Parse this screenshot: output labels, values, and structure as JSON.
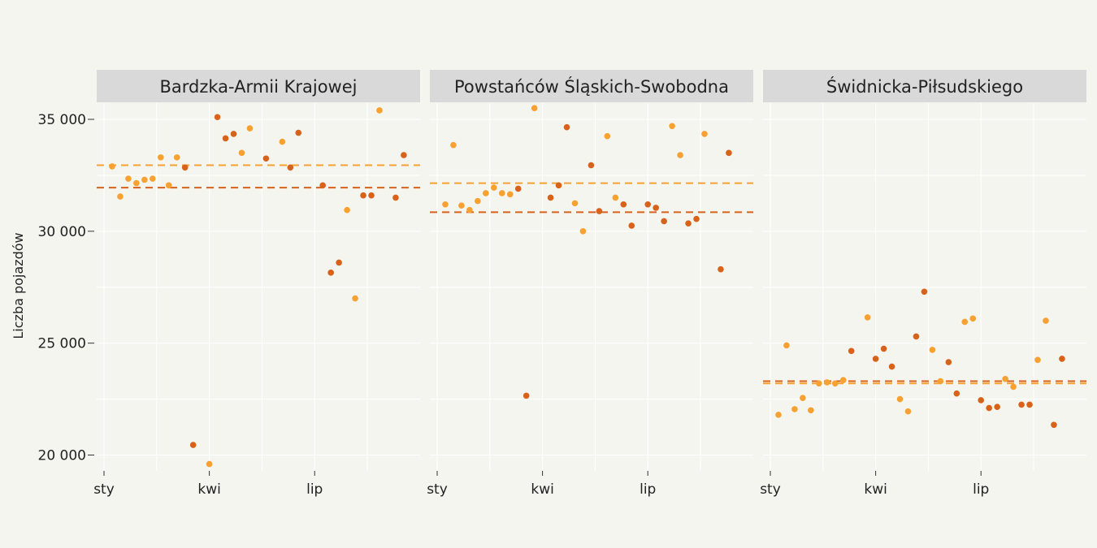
{
  "chart_data": {
    "type": "scatter",
    "ylabel": "Liczba pojazdów",
    "ylim": [
      19300,
      37000
    ],
    "y_ticks": [
      20000,
      25000,
      30000,
      35000
    ],
    "y_tick_labels": [
      "20 000",
      "25 000",
      "30 000",
      "35 000"
    ],
    "x_tick_labels": [
      "sty",
      "kwi",
      "lip"
    ],
    "colors": {
      "light": "#f7a133",
      "dark": "#d9621a",
      "strip": "#d9d9d9",
      "grid": "#ffffff"
    },
    "panels": [
      {
        "label": "Bardzka-Armii Krajowej",
        "mean_light": 32950,
        "mean_dark": 31950,
        "points": [
          {
            "week": 1,
            "y": 32900,
            "s": "light"
          },
          {
            "week": 2,
            "y": 31550,
            "s": "light"
          },
          {
            "week": 3,
            "y": 32350,
            "s": "light"
          },
          {
            "week": 4,
            "y": 32150,
            "s": "light"
          },
          {
            "week": 5,
            "y": 32300,
            "s": "light"
          },
          {
            "week": 6,
            "y": 32350,
            "s": "light"
          },
          {
            "week": 7,
            "y": 33300,
            "s": "light"
          },
          {
            "week": 8,
            "y": 32050,
            "s": "light"
          },
          {
            "week": 9,
            "y": 33300,
            "s": "light"
          },
          {
            "week": 10,
            "y": 32850,
            "s": "dark"
          },
          {
            "week": 11,
            "y": 20450,
            "s": "dark"
          },
          {
            "week": 13,
            "y": 19600,
            "s": "light"
          },
          {
            "week": 14,
            "y": 35100,
            "s": "dark"
          },
          {
            "week": 15,
            "y": 34150,
            "s": "dark"
          },
          {
            "week": 16,
            "y": 34350,
            "s": "dark"
          },
          {
            "week": 17,
            "y": 33500,
            "s": "light"
          },
          {
            "week": 18,
            "y": 34600,
            "s": "light"
          },
          {
            "week": 20,
            "y": 33250,
            "s": "dark"
          },
          {
            "week": 22,
            "y": 34000,
            "s": "light"
          },
          {
            "week": 23,
            "y": 32850,
            "s": "dark"
          },
          {
            "week": 24,
            "y": 34400,
            "s": "dark"
          },
          {
            "week": 27,
            "y": 32050,
            "s": "dark"
          },
          {
            "week": 28,
            "y": 28150,
            "s": "dark"
          },
          {
            "week": 29,
            "y": 28600,
            "s": "dark"
          },
          {
            "week": 30,
            "y": 30950,
            "s": "light"
          },
          {
            "week": 31,
            "y": 27000,
            "s": "light"
          },
          {
            "week": 32,
            "y": 31600,
            "s": "dark"
          },
          {
            "week": 33,
            "y": 31600,
            "s": "dark"
          },
          {
            "week": 34,
            "y": 35400,
            "s": "light"
          },
          {
            "week": 36,
            "y": 31500,
            "s": "dark"
          },
          {
            "week": 37,
            "y": 33400,
            "s": "dark"
          }
        ]
      },
      {
        "label": "Powstańców Śląskich-Swobodna",
        "mean_light": 32150,
        "mean_dark": 30850,
        "points": [
          {
            "week": 1,
            "y": 31200,
            "s": "light"
          },
          {
            "week": 2,
            "y": 33850,
            "s": "light"
          },
          {
            "week": 3,
            "y": 31150,
            "s": "light"
          },
          {
            "week": 4,
            "y": 30950,
            "s": "light"
          },
          {
            "week": 5,
            "y": 31350,
            "s": "light"
          },
          {
            "week": 6,
            "y": 31700,
            "s": "light"
          },
          {
            "week": 7,
            "y": 31950,
            "s": "light"
          },
          {
            "week": 8,
            "y": 31700,
            "s": "light"
          },
          {
            "week": 9,
            "y": 31650,
            "s": "light"
          },
          {
            "week": 10,
            "y": 31900,
            "s": "dark"
          },
          {
            "week": 11,
            "y": 22650,
            "s": "dark"
          },
          {
            "week": 12,
            "y": 35500,
            "s": "light"
          },
          {
            "week": 14,
            "y": 31500,
            "s": "dark"
          },
          {
            "week": 15,
            "y": 32050,
            "s": "dark"
          },
          {
            "week": 16,
            "y": 34650,
            "s": "dark"
          },
          {
            "week": 17,
            "y": 31250,
            "s": "light"
          },
          {
            "week": 18,
            "y": 30000,
            "s": "light"
          },
          {
            "week": 19,
            "y": 32950,
            "s": "dark"
          },
          {
            "week": 20,
            "y": 30900,
            "s": "dark"
          },
          {
            "week": 21,
            "y": 34250,
            "s": "light"
          },
          {
            "week": 22,
            "y": 31500,
            "s": "light"
          },
          {
            "week": 23,
            "y": 31200,
            "s": "dark"
          },
          {
            "week": 24,
            "y": 30250,
            "s": "dark"
          },
          {
            "week": 26,
            "y": 31200,
            "s": "dark"
          },
          {
            "week": 27,
            "y": 31050,
            "s": "dark"
          },
          {
            "week": 28,
            "y": 30450,
            "s": "dark"
          },
          {
            "week": 29,
            "y": 34700,
            "s": "light"
          },
          {
            "week": 30,
            "y": 33400,
            "s": "light"
          },
          {
            "week": 31,
            "y": 30350,
            "s": "dark"
          },
          {
            "week": 32,
            "y": 30550,
            "s": "dark"
          },
          {
            "week": 33,
            "y": 34350,
            "s": "light"
          },
          {
            "week": 35,
            "y": 28300,
            "s": "dark"
          },
          {
            "week": 36,
            "y": 33500,
            "s": "dark"
          }
        ]
      },
      {
        "label": "Świdnicka-Piłsudskiego",
        "mean_light": 23200,
        "mean_dark": 23300,
        "points": [
          {
            "week": 1,
            "y": 21800,
            "s": "light"
          },
          {
            "week": 2,
            "y": 24900,
            "s": "light"
          },
          {
            "week": 3,
            "y": 22050,
            "s": "light"
          },
          {
            "week": 4,
            "y": 22550,
            "s": "light"
          },
          {
            "week": 5,
            "y": 22000,
            "s": "light"
          },
          {
            "week": 6,
            "y": 23200,
            "s": "light"
          },
          {
            "week": 7,
            "y": 23250,
            "s": "light"
          },
          {
            "week": 8,
            "y": 23200,
            "s": "light"
          },
          {
            "week": 9,
            "y": 23350,
            "s": "light"
          },
          {
            "week": 10,
            "y": 24650,
            "s": "dark"
          },
          {
            "week": 12,
            "y": 26150,
            "s": "light"
          },
          {
            "week": 13,
            "y": 24300,
            "s": "dark"
          },
          {
            "week": 14,
            "y": 24750,
            "s": "dark"
          },
          {
            "week": 15,
            "y": 23950,
            "s": "dark"
          },
          {
            "week": 16,
            "y": 22500,
            "s": "light"
          },
          {
            "week": 17,
            "y": 21950,
            "s": "light"
          },
          {
            "week": 18,
            "y": 25300,
            "s": "dark"
          },
          {
            "week": 19,
            "y": 27300,
            "s": "dark"
          },
          {
            "week": 20,
            "y": 24700,
            "s": "light"
          },
          {
            "week": 21,
            "y": 23300,
            "s": "light"
          },
          {
            "week": 22,
            "y": 24150,
            "s": "dark"
          },
          {
            "week": 23,
            "y": 22750,
            "s": "dark"
          },
          {
            "week": 24,
            "y": 25950,
            "s": "light"
          },
          {
            "week": 25,
            "y": 26100,
            "s": "light"
          },
          {
            "week": 26,
            "y": 22450,
            "s": "dark"
          },
          {
            "week": 27,
            "y": 22100,
            "s": "dark"
          },
          {
            "week": 28,
            "y": 22150,
            "s": "dark"
          },
          {
            "week": 29,
            "y": 23400,
            "s": "light"
          },
          {
            "week": 30,
            "y": 23050,
            "s": "light"
          },
          {
            "week": 31,
            "y": 22250,
            "s": "dark"
          },
          {
            "week": 32,
            "y": 22250,
            "s": "dark"
          },
          {
            "week": 33,
            "y": 24250,
            "s": "light"
          },
          {
            "week": 34,
            "y": 26000,
            "s": "light"
          },
          {
            "week": 35,
            "y": 21350,
            "s": "dark"
          },
          {
            "week": 36,
            "y": 24300,
            "s": "dark"
          }
        ]
      }
    ]
  }
}
